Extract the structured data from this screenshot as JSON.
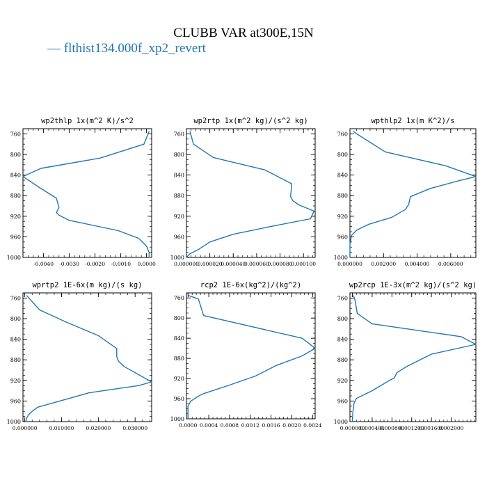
{
  "figure": {
    "title": "CLUBB VAR at300E,15N",
    "legend_label": "flthist134.000f_xp2_revert",
    "legend_marker": "—",
    "line_color": "#1f77b4"
  },
  "chart_data": [
    {
      "type": "line",
      "title": "wp2thlp  1x(m^2 K)/s^2",
      "xlim": [
        -0.0048,
        0.0002
      ],
      "ylim": [
        1000,
        750
      ],
      "yticks": [
        "760",
        "800",
        "840",
        "880",
        "920",
        "960",
        "1000"
      ],
      "yticks_values": [
        760,
        800,
        840,
        880,
        920,
        960,
        1000
      ],
      "xticks": [
        "-0.0040",
        "-0.0030",
        "-0.0020",
        "-0.0010",
        "0.0000"
      ],
      "xticks_values": [
        -0.004,
        -0.003,
        -0.002,
        -0.001,
        0.0
      ],
      "series": [
        {
          "x": [
            0.0001,
            -0.0001,
            -0.0018,
            -0.0041,
            -0.0048,
            -0.0042,
            -0.0035,
            -0.0034,
            -0.0035,
            -0.0034,
            -0.003,
            -0.0011,
            -0.0003,
            0.0,
            0.0001,
            0.0001
          ],
          "y": [
            755,
            780,
            807,
            827,
            843,
            863,
            885,
            903,
            913,
            918,
            928,
            948,
            963,
            978,
            990,
            1000
          ]
        }
      ]
    },
    {
      "type": "line",
      "title": "wp2rtp  1x(m^2 kg)/(s^2 kg)",
      "xlim": [
        0.0,
        0.00011
      ],
      "ylim": [
        1000,
        750
      ],
      "yticks": [
        "760",
        "800",
        "840",
        "880",
        "920",
        "960",
        "1000"
      ],
      "yticks_values": [
        760,
        800,
        840,
        880,
        920,
        960,
        1000
      ],
      "xticks": [
        "0.000000",
        "0.000020",
        "0.000040",
        "0.000060",
        "0.000080",
        "0.000100"
      ],
      "xticks_values": [
        0.0,
        2e-05,
        4e-05,
        6e-05,
        8e-05,
        0.0001
      ],
      "series": [
        {
          "x": [
            3e-06,
            6e-06,
            2.3e-05,
            6.7e-05,
            9e-05,
            8.9e-05,
            9.1e-05,
            9.6e-05,
            0.000109,
            0.000106,
            7.2e-05,
            4e-05,
            2e-05,
            1e-05,
            3e-06,
            0.0
          ],
          "y": [
            755,
            780,
            806,
            830,
            857,
            882,
            890,
            898,
            910,
            925,
            940,
            955,
            970,
            985,
            993,
            1000
          ]
        }
      ]
    },
    {
      "type": "line",
      "title": "wpthlp2  1x(m K^2)/s",
      "xlim": [
        0.0,
        0.0075
      ],
      "ylim": [
        1000,
        750
      ],
      "yticks": [
        "760",
        "800",
        "840",
        "880",
        "920",
        "960",
        "1000"
      ],
      "yticks_values": [
        760,
        800,
        840,
        880,
        920,
        960,
        1000
      ],
      "xticks": [
        "0.000000",
        "0.002000",
        "0.004000",
        "0.006000"
      ],
      "xticks_values": [
        0.0,
        0.002,
        0.004,
        0.006
      ],
      "series": [
        {
          "x": [
            0.0002,
            0.0005,
            0.0021,
            0.0057,
            0.0075,
            0.0065,
            0.0048,
            0.0036,
            0.0035,
            0.0033,
            0.0025,
            0.0011,
            0.0004,
            0.0001,
            0.0,
            0.0
          ],
          "y": [
            755,
            762,
            795,
            822,
            843,
            851,
            866,
            882,
            897,
            907,
            922,
            936,
            947,
            957,
            975,
            1000
          ]
        }
      ]
    },
    {
      "type": "line",
      "title": "wprtp2  1E-6x(m kg)/(s kg)",
      "xlim": [
        -0.0005,
        0.0345
      ],
      "ylim": [
        1000,
        750
      ],
      "yticks": [
        "760",
        "800",
        "840",
        "880",
        "920",
        "960",
        "1000"
      ],
      "yticks_values": [
        760,
        800,
        840,
        880,
        920,
        960,
        1000
      ],
      "xticks": [
        "0.000000",
        "0.010000",
        "0.020000",
        "0.030000"
      ],
      "xticks_values": [
        0.0,
        0.01,
        0.02,
        0.03
      ],
      "series": [
        {
          "x": [
            0.0005,
            0.004,
            0.011,
            0.02,
            0.025,
            0.025,
            0.0255,
            0.027,
            0.0345,
            0.031,
            0.0175,
            0.0075,
            0.0035,
            0.002,
            0.001,
            0.0005,
            0.0003
          ],
          "y": [
            755,
            783,
            806,
            833,
            858,
            874,
            883,
            893,
            923,
            930,
            944,
            964,
            972,
            980,
            987,
            993,
            1000
          ]
        }
      ]
    },
    {
      "type": "line",
      "title": "rcp2  1E-6x(kg^2)/(kg^2)",
      "xlim": [
        -3e-05,
        0.00245
      ],
      "ylim": [
        1000,
        750
      ],
      "yticks": [
        "760",
        "800",
        "840",
        "880",
        "920",
        "960",
        "1000"
      ],
      "yticks_values": [
        760,
        800,
        840,
        880,
        920,
        960,
        1000
      ],
      "xticks": [
        "0.0000",
        "0.0004",
        "0.0008",
        "0.0012",
        "0.0016",
        "0.0020",
        "0.0024"
      ],
      "xticks_values": [
        0.0,
        0.0004,
        0.0008,
        0.0012,
        0.0016,
        0.002,
        0.0024
      ],
      "series": [
        {
          "x": [
            0.0,
            0.0002,
            0.0003,
            0.0022,
            0.00245,
            0.0022,
            0.0017,
            0.0013,
            0.0008,
            0.0003,
            0.0002,
            5e-05,
            0.0,
            0.0
          ],
          "y": [
            755,
            762,
            795,
            840,
            860,
            875,
            894,
            915,
            933,
            950,
            955,
            965,
            975,
            1000
          ]
        }
      ]
    },
    {
      "type": "line",
      "title": "wp2rcp  1E-3x(m^2 kg)/(s^2 kg)",
      "xlim": [
        -5e-05,
        0.0025
      ],
      "ylim": [
        1000,
        750
      ],
      "yticks": [
        "760",
        "800",
        "840",
        "880",
        "920",
        "960",
        "1000"
      ],
      "yticks_values": [
        760,
        800,
        840,
        880,
        920,
        960,
        1000
      ],
      "xticks": [
        "0.000000",
        "0.000400",
        "0.000800",
        "0.001200",
        "0.001600",
        "0.002000"
      ],
      "xticks_values": [
        0.0,
        0.0004,
        0.0008,
        0.0012,
        0.0016,
        0.002
      ],
      "series": [
        {
          "x": [
            2e-05,
            5e-05,
            0.0001,
            0.0004,
            0.0022,
            0.0025,
            0.0016,
            0.0011,
            0.0009,
            0.00085,
            0.00075,
            0.0004,
            8e-05,
            3e-05,
            1e-05,
            0.0
          ],
          "y": [
            755,
            763,
            790,
            810,
            835,
            850,
            869,
            893,
            905,
            915,
            920,
            940,
            955,
            965,
            980,
            1000
          ]
        }
      ]
    }
  ]
}
